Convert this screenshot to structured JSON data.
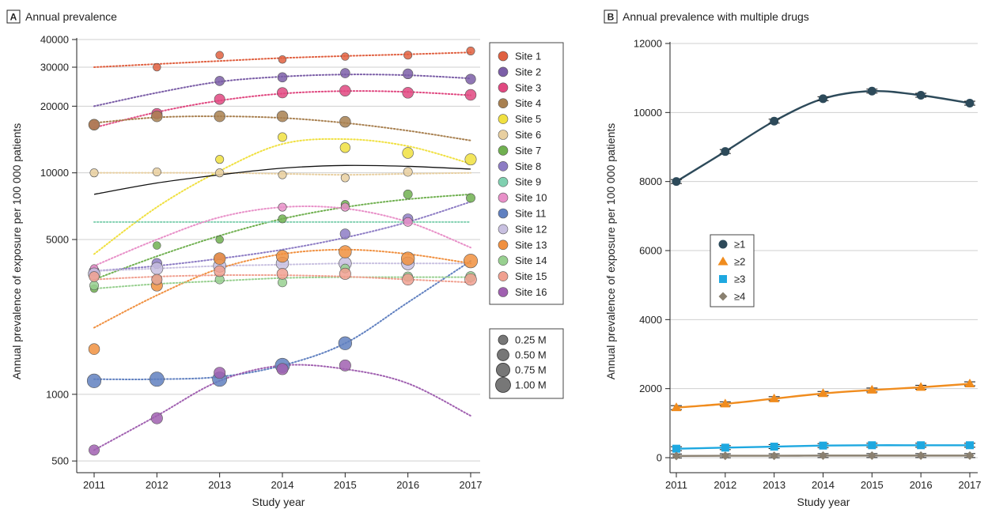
{
  "chart_data": [
    {
      "type": "scatter",
      "panel_letter": "A",
      "title": "Annual prevalence",
      "xlabel": "Study year",
      "ylabel": "Annual prevalence of exposure per 100 000 patients",
      "scale": "log",
      "ylim": [
        450,
        40000
      ],
      "y_ticks": [
        500,
        1000,
        5000,
        10000,
        20000,
        30000,
        40000
      ],
      "y_tick_labels": [
        "500",
        "1000",
        "5000",
        "10000",
        "20000",
        "30000",
        "40000"
      ],
      "x": [
        2011,
        2012,
        2013,
        2014,
        2015,
        2016,
        2017
      ],
      "x_tick_labels": [
        "2011",
        "2012",
        "2013",
        "2014",
        "2015",
        "2016",
        "2017"
      ],
      "grid": "horizontal",
      "legend_position": "right",
      "size_legend": {
        "labels": [
          "0.25 M",
          "0.50 M",
          "0.75 M",
          "1.00 M"
        ],
        "values": [
          0.25,
          0.5,
          0.75,
          1.0
        ]
      },
      "overall_trend": [
        8000,
        9000,
        9800,
        10500,
        10800,
        10700,
        10400
      ],
      "series": [
        {
          "name": "Site 1",
          "color": "#e06040",
          "values": [
            null,
            30000,
            34000,
            32500,
            33500,
            34000,
            35500
          ],
          "trend": [
            30000,
            31000,
            32000,
            33000,
            33700,
            34300,
            35000
          ],
          "sizes": [
            0.12,
            0.12,
            0.12,
            0.12,
            0.12,
            0.15,
            0.15
          ]
        },
        {
          "name": "Site 2",
          "color": "#7b5ea7",
          "values": [
            null,
            null,
            26000,
            27000,
            28200,
            28000,
            26500
          ],
          "trend": [
            20000,
            23000,
            25800,
            27200,
            27800,
            27600,
            26700
          ],
          "sizes": [
            0.25,
            0.25,
            0.25,
            0.25,
            0.25,
            0.3,
            0.3
          ]
        },
        {
          "name": "Site 3",
          "color": "#e04880",
          "values": [
            16500,
            18500,
            21500,
            23000,
            23500,
            23000,
            22500
          ],
          "trend": [
            16000,
            18800,
            21200,
            22800,
            23400,
            23200,
            22400
          ],
          "sizes": [
            0.3,
            0.35,
            0.35,
            0.35,
            0.4,
            0.4,
            0.4
          ]
        },
        {
          "name": "Site 4",
          "color": "#a88050",
          "values": [
            16500,
            18000,
            18000,
            18000,
            17000,
            null,
            null
          ],
          "trend": [
            16800,
            17800,
            18000,
            17700,
            16800,
            15500,
            14000
          ],
          "sizes": [
            0.4,
            0.4,
            0.4,
            0.4,
            0.4,
            0.4,
            0.4
          ]
        },
        {
          "name": "Site 5",
          "color": "#f0e040",
          "values": [
            null,
            null,
            11500,
            14500,
            13000,
            12300,
            11500
          ],
          "trend": [
            4300,
            7000,
            10200,
            13500,
            14200,
            13200,
            11000
          ],
          "sizes": [
            0.1,
            0.1,
            0.15,
            0.2,
            0.3,
            0.4,
            0.45
          ]
        },
        {
          "name": "Site 6",
          "color": "#e8cfa0",
          "values": [
            10000,
            10100,
            10000,
            9800,
            9500,
            10100,
            null
          ],
          "trend": [
            10000,
            10000,
            10000,
            9900,
            9800,
            9900,
            10000
          ],
          "sizes": [
            0.15,
            0.15,
            0.15,
            0.15,
            0.15,
            0.2,
            0.2
          ]
        },
        {
          "name": "Site 7",
          "color": "#70b050",
          "values": [
            3000,
            4700,
            5000,
            6200,
            7200,
            8000,
            7700
          ],
          "trend": [
            3300,
            4200,
            5200,
            6200,
            7000,
            7600,
            8000
          ],
          "sizes": [
            0.12,
            0.12,
            0.12,
            0.15,
            0.15,
            0.2,
            0.2
          ]
        },
        {
          "name": "Site 8",
          "color": "#8d7cc4",
          "values": [
            3600,
            3900,
            4100,
            null,
            5300,
            6200,
            null
          ],
          "trend": [
            3600,
            3800,
            4100,
            4500,
            5100,
            6000,
            7400
          ],
          "sizes": [
            0.3,
            0.3,
            0.3,
            0.3,
            0.3,
            0.3,
            0.3
          ]
        },
        {
          "name": "Site 9",
          "color": "#80d0b0",
          "values": [
            null,
            null,
            null,
            null,
            null,
            null,
            null
          ],
          "trend": [
            6000,
            6000,
            6000,
            6000,
            6000,
            6000,
            6000
          ],
          "sizes": [
            0.1,
            0.1,
            0.1,
            0.1,
            0.1,
            0.1,
            0.1
          ]
        },
        {
          "name": "Site 10",
          "color": "#e890c8",
          "values": [
            3700,
            null,
            null,
            7000,
            7000,
            6000,
            null
          ],
          "trend": [
            3800,
            5000,
            6300,
            7000,
            6900,
            6000,
            4600
          ],
          "sizes": [
            0.12,
            0.12,
            0.12,
            0.15,
            0.15,
            0.2,
            0.2
          ]
        },
        {
          "name": "Site 11",
          "color": "#6080c0",
          "values": [
            1150,
            1170,
            1170,
            1350,
            1700,
            null,
            null
          ],
          "trend": [
            1170,
            1170,
            1200,
            1350,
            1700,
            2600,
            4000
          ],
          "sizes": [
            0.8,
            0.9,
            0.9,
            0.9,
            0.7,
            0.7,
            0.7
          ]
        },
        {
          "name": "Site 12",
          "color": "#c8c0e0",
          "values": [
            3500,
            3700,
            3800,
            3900,
            3900,
            3900,
            null
          ],
          "trend": [
            3600,
            3700,
            3800,
            3850,
            3900,
            3900,
            3900
          ],
          "sizes": [
            0.5,
            0.55,
            0.6,
            0.6,
            0.6,
            0.65,
            0.65
          ]
        },
        {
          "name": "Site 13",
          "color": "#f09040",
          "values": [
            1600,
            3100,
            4100,
            4200,
            4400,
            4100,
            4000
          ],
          "trend": [
            2000,
            2800,
            3700,
            4300,
            4500,
            4300,
            3900
          ],
          "sizes": [
            0.4,
            0.45,
            0.5,
            0.55,
            0.6,
            0.7,
            0.8
          ]
        },
        {
          "name": "Site 14",
          "color": "#98d090",
          "values": [
            3100,
            3300,
            3300,
            3200,
            3700,
            3400,
            3400
          ],
          "trend": [
            3000,
            3150,
            3250,
            3350,
            3380,
            3380,
            3380
          ],
          "sizes": [
            0.2,
            0.2,
            0.2,
            0.2,
            0.2,
            0.25,
            0.3
          ]
        },
        {
          "name": "Site 15",
          "color": "#f0a090",
          "values": [
            3400,
            3300,
            3600,
            3500,
            3500,
            3300,
            3300
          ],
          "trend": [
            3300,
            3400,
            3450,
            3450,
            3400,
            3300,
            3200
          ],
          "sizes": [
            0.3,
            0.35,
            0.4,
            0.4,
            0.45,
            0.45,
            0.5
          ]
        },
        {
          "name": "Site 16",
          "color": "#a060b0",
          "values": [
            560,
            780,
            1250,
            1300,
            1350,
            null,
            null
          ],
          "trend": [
            560,
            800,
            1150,
            1350,
            1300,
            1120,
            800
          ],
          "sizes": [
            0.35,
            0.45,
            0.45,
            0.45,
            0.45,
            0.45,
            0.45
          ]
        }
      ]
    },
    {
      "type": "line",
      "panel_letter": "B",
      "title": "Annual prevalence with multiple drugs",
      "xlabel": "Study year",
      "ylabel": "Annual prevalence of exposure per 100 000 patients",
      "ylim": [
        0,
        12000
      ],
      "y_ticks": [
        0,
        2000,
        4000,
        6000,
        8000,
        10000,
        12000
      ],
      "y_tick_labels": [
        "0",
        "2000",
        "4000",
        "6000",
        "8000",
        "10000",
        "12000"
      ],
      "x": [
        2011,
        2012,
        2013,
        2014,
        2015,
        2016,
        2017
      ],
      "x_tick_labels": [
        "2011",
        "2012",
        "2013",
        "2014",
        "2015",
        "2016",
        "2017"
      ],
      "grid": "horizontal",
      "legend_position": "left-middle",
      "series": [
        {
          "name": "≥1",
          "color": "#2d4a5a",
          "marker": "circle",
          "values": [
            8000,
            8870,
            9750,
            10400,
            10620,
            10500,
            10270
          ]
        },
        {
          "name": "≥2",
          "color": "#f08c1e",
          "marker": "triangle",
          "values": [
            1450,
            1560,
            1710,
            1860,
            1960,
            2040,
            2140
          ]
        },
        {
          "name": "≥3",
          "color": "#1ea8e0",
          "marker": "square",
          "values": [
            260,
            290,
            320,
            350,
            360,
            360,
            360
          ]
        },
        {
          "name": "≥4",
          "color": "#8a8070",
          "marker": "diamond",
          "values": [
            50,
            55,
            55,
            60,
            60,
            60,
            60
          ]
        }
      ]
    }
  ]
}
